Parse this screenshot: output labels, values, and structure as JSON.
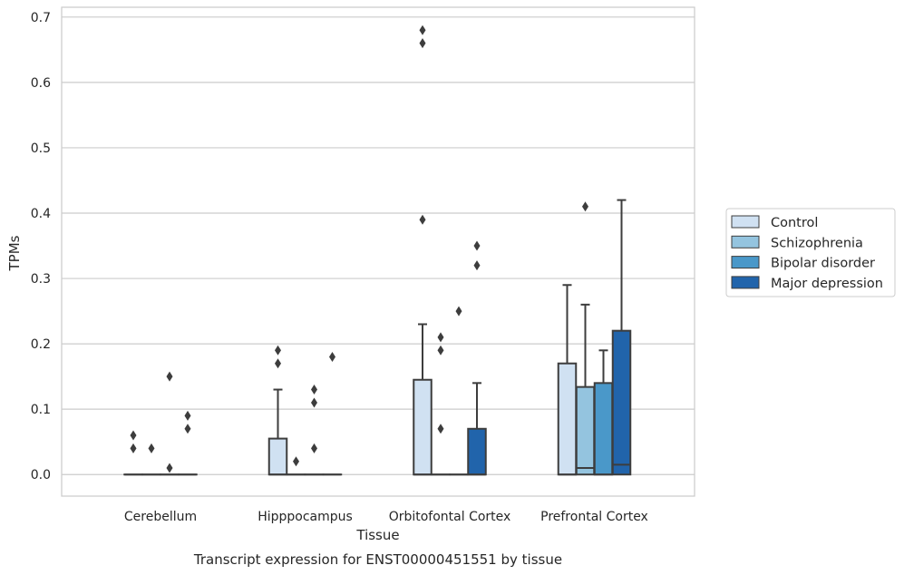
{
  "chart_data": {
    "type": "box",
    "title": "",
    "xlabel": "Tissue",
    "ylabel": "TPMs",
    "caption": "Transcript expression for ENST00000451551 by tissue",
    "ylim": [
      -0.033,
      0.715
    ],
    "yticks": [
      0.0,
      0.1,
      0.2,
      0.3,
      0.4,
      0.5,
      0.6,
      0.7
    ],
    "ytick_labels": [
      "0.0",
      "0.1",
      "0.2",
      "0.3",
      "0.4",
      "0.5",
      "0.6",
      "0.7"
    ],
    "grid": true,
    "legend_position": "right-center",
    "categories": [
      "Cerebellum",
      "Hipppocampus",
      "Orbitofontal Cortex",
      "Prefrontal Cortex"
    ],
    "series": [
      {
        "name": "Control",
        "color": "#d0e1f2",
        "boxes": [
          {
            "q1": 0.0,
            "median": 0.0,
            "q3": 0.0,
            "whisker_low": 0.0,
            "whisker_high": 0.0,
            "outliers": [
              0.04,
              0.06
            ]
          },
          {
            "q1": 0.0,
            "median": 0.0,
            "q3": 0.055,
            "whisker_low": 0.0,
            "whisker_high": 0.13,
            "outliers": [
              0.17,
              0.19
            ]
          },
          {
            "q1": 0.0,
            "median": 0.0,
            "q3": 0.145,
            "whisker_low": 0.0,
            "whisker_high": 0.23,
            "outliers": [
              0.39,
              0.66,
              0.68
            ]
          },
          {
            "q1": 0.0,
            "median": 0.0,
            "q3": 0.17,
            "whisker_low": 0.0,
            "whisker_high": 0.29,
            "outliers": []
          }
        ]
      },
      {
        "name": "Schizophrenia",
        "color": "#94c4df",
        "boxes": [
          {
            "q1": 0.0,
            "median": 0.0,
            "q3": 0.0,
            "whisker_low": 0.0,
            "whisker_high": 0.0,
            "outliers": [
              0.04
            ]
          },
          {
            "q1": 0.0,
            "median": 0.0,
            "q3": 0.0,
            "whisker_low": 0.0,
            "whisker_high": 0.0,
            "outliers": [
              0.02
            ]
          },
          {
            "q1": 0.0,
            "median": 0.0,
            "q3": 0.0,
            "whisker_low": 0.0,
            "whisker_high": 0.0,
            "outliers": [
              0.07,
              0.19,
              0.21
            ]
          },
          {
            "q1": 0.0,
            "median": 0.01,
            "q3": 0.134,
            "whisker_low": 0.0,
            "whisker_high": 0.26,
            "outliers": [
              0.41
            ]
          }
        ]
      },
      {
        "name": "Bipolar disorder",
        "color": "#4a98c9",
        "boxes": [
          {
            "q1": 0.0,
            "median": 0.0,
            "q3": 0.0,
            "whisker_low": 0.0,
            "whisker_high": 0.0,
            "outliers": [
              0.01,
              0.15
            ]
          },
          {
            "q1": 0.0,
            "median": 0.0,
            "q3": 0.0,
            "whisker_low": 0.0,
            "whisker_high": 0.0,
            "outliers": [
              0.04,
              0.11,
              0.13
            ]
          },
          {
            "q1": 0.0,
            "median": 0.0,
            "q3": 0.0,
            "whisker_low": 0.0,
            "whisker_high": 0.0,
            "outliers": [
              0.25
            ]
          },
          {
            "q1": 0.0,
            "median": 0.0,
            "q3": 0.14,
            "whisker_low": 0.0,
            "whisker_high": 0.19,
            "outliers": []
          }
        ]
      },
      {
        "name": "Major depression",
        "color": "#2164ab",
        "boxes": [
          {
            "q1": 0.0,
            "median": 0.0,
            "q3": 0.0,
            "whisker_low": 0.0,
            "whisker_high": 0.0,
            "outliers": [
              0.07,
              0.09
            ]
          },
          {
            "q1": 0.0,
            "median": 0.0,
            "q3": 0.0,
            "whisker_low": 0.0,
            "whisker_high": 0.0,
            "outliers": [
              0.18
            ]
          },
          {
            "q1": 0.0,
            "median": 0.0,
            "q3": 0.07,
            "whisker_low": 0.0,
            "whisker_high": 0.14,
            "outliers": [
              0.32,
              0.35
            ]
          },
          {
            "q1": 0.0,
            "median": 0.015,
            "q3": 0.22,
            "whisker_low": 0.0,
            "whisker_high": 0.42,
            "outliers": []
          }
        ]
      }
    ]
  }
}
